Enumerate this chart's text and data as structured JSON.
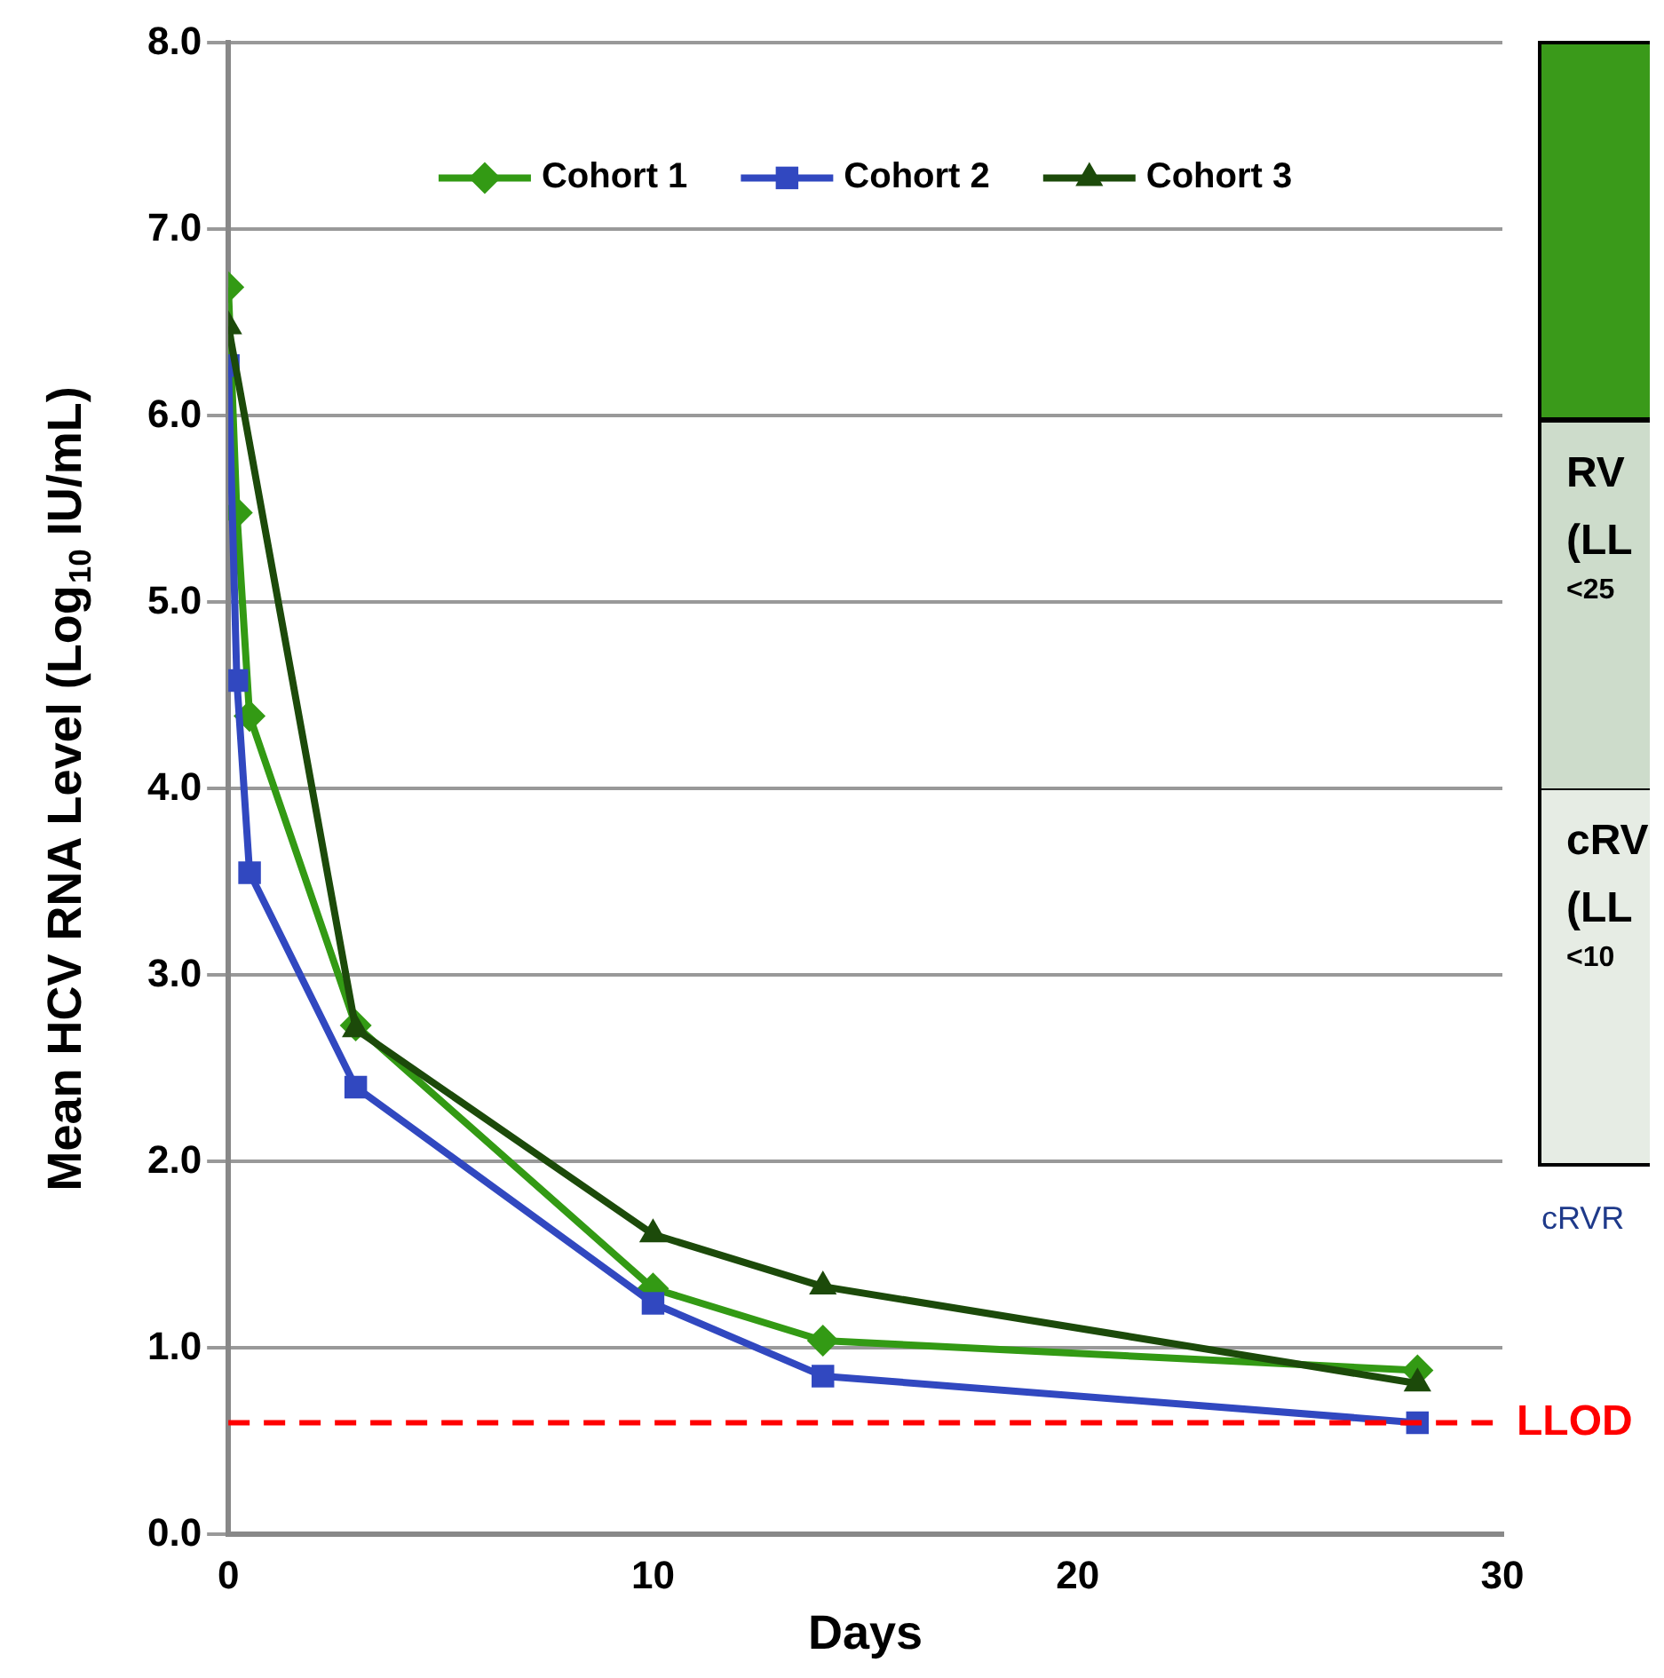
{
  "chart_data": {
    "type": "line",
    "xlabel": "Days",
    "ylabel": "Mean HCV RNA Level (Log$_{10}$ IU/mL)",
    "xlim": [
      0,
      30
    ],
    "xticks": [
      0,
      10,
      20,
      30
    ],
    "ylim": [
      0,
      8
    ],
    "yticks": [
      {
        "value": 0,
        "label": "0.0"
      },
      {
        "value": 1,
        "label": "1.0"
      },
      {
        "value": 2,
        "label": "2.0"
      },
      {
        "value": 3,
        "label": "3.0"
      },
      {
        "value": 4,
        "label": "4.0"
      },
      {
        "value": 5,
        "label": "5.0"
      },
      {
        "value": 6,
        "label": "6.0"
      },
      {
        "value": 7,
        "label": "7.0"
      },
      {
        "value": 8,
        "label": "8.0"
      }
    ],
    "grid": "y",
    "legend": "top",
    "line_style": "solid",
    "series": [
      {
        "name": "Cohort 1",
        "color": "#339a14",
        "marker": "diamond",
        "x": [
          0,
          0.2,
          0.5,
          3,
          10,
          14,
          28
        ],
        "values": [
          6.69,
          5.48,
          4.39,
          2.73,
          1.32,
          1.04,
          0.88
        ]
      },
      {
        "name": "Cohort 2",
        "color": "#3148c0",
        "marker": "square",
        "x": [
          0,
          0.2,
          0.5,
          3,
          10,
          14,
          28
        ],
        "values": [
          6.27,
          4.58,
          3.55,
          2.4,
          1.24,
          0.85,
          0.6
        ]
      },
      {
        "name": "Cohort 3",
        "color": "#1c4a0a",
        "marker": "triangle",
        "x": [
          0,
          3,
          10,
          14,
          28
        ],
        "values": [
          6.48,
          2.71,
          1.61,
          1.33,
          0.81
        ]
      }
    ],
    "ref_lines": [
      {
        "axis": "y",
        "value": 0.6,
        "label": "LLOD",
        "color": "#ff0000",
        "line_style": "dashed"
      }
    ],
    "annotations": [
      "RV",
      "(LL",
      "<25",
      "cRV",
      "(LL",
      "<10",
      "cRVR"
    ]
  }
}
